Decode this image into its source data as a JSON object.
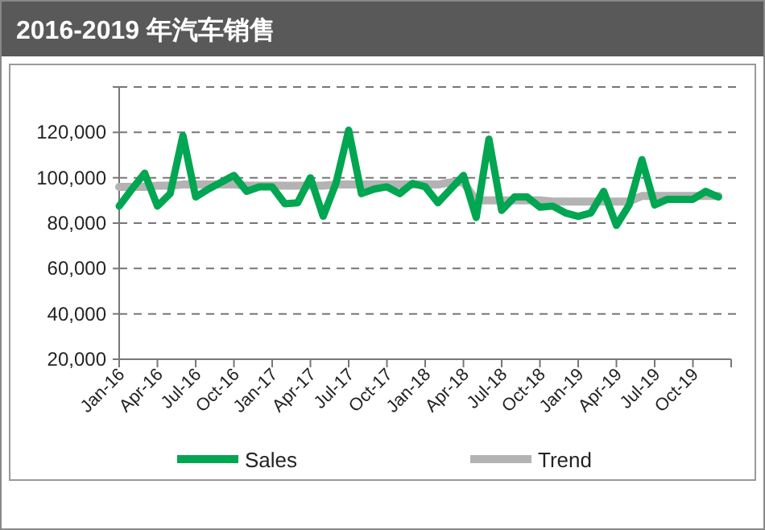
{
  "chart_data": {
    "type": "line",
    "title": "2016-2019 年汽车销售",
    "categories": [
      "Jan-16",
      null,
      null,
      "Apr-16",
      null,
      null,
      "Jul-16",
      null,
      null,
      "Oct-16",
      null,
      null,
      "Jan-17",
      null,
      null,
      "Apr-17",
      null,
      null,
      "Jul-17",
      null,
      null,
      "Oct-17",
      null,
      null,
      "Jan-18",
      null,
      null,
      "Apr-18",
      null,
      null,
      "Jul-18",
      null,
      null,
      "Oct-18",
      null,
      null,
      "Jan-19",
      null,
      null,
      "Apr-19",
      null,
      null,
      "Jul-19",
      null,
      null,
      "Oct-19",
      null,
      null
    ],
    "series": [
      {
        "name": "Sales",
        "color": "#00a651",
        "values": [
          87500,
          95000,
          102000,
          87500,
          93000,
          118600,
          91500,
          95000,
          98000,
          101000,
          94000,
          96000,
          96000,
          88500,
          89000,
          100000,
          83000,
          97500,
          121000,
          93000,
          95000,
          96000,
          93000,
          97500,
          96000,
          89000,
          95000,
          101000,
          82500,
          117000,
          85600,
          91500,
          91500,
          87000,
          87500,
          84500,
          83000,
          84500,
          94000,
          79000,
          88000,
          108000,
          88000,
          90500,
          90500,
          90500,
          94000,
          91500
        ]
      },
      {
        "name": "Trend",
        "color": "#b3b3b3",
        "values": [
          96000,
          96000,
          96000,
          96500,
          96500,
          97000,
          97000,
          97000,
          97000,
          97000,
          96500,
          96500,
          96500,
          96500,
          96500,
          96500,
          96500,
          97000,
          97000,
          97000,
          97000,
          97000,
          97000,
          97000,
          97000,
          97000,
          98000,
          98000,
          90000,
          90000,
          90000,
          90000,
          90000,
          90000,
          89500,
          89500,
          89500,
          89500,
          89500,
          89500,
          89500,
          92000,
          92000,
          92000,
          92000,
          92000,
          92000,
          92000
        ]
      }
    ],
    "ylim": [
      20000,
      140000
    ],
    "yticks": [
      {
        "value": 20000,
        "label": "20,000"
      },
      {
        "value": 40000,
        "label": "40,000"
      },
      {
        "value": 60000,
        "label": "60,000"
      },
      {
        "value": 80000,
        "label": "80,000"
      },
      {
        "value": 100000,
        "label": "100,000"
      },
      {
        "value": 120000,
        "label": "120,000"
      },
      {
        "value": 140000,
        "label": null
      }
    ],
    "grid": "y",
    "legend": "bottom",
    "line_style": "solid",
    "marker": "none"
  }
}
